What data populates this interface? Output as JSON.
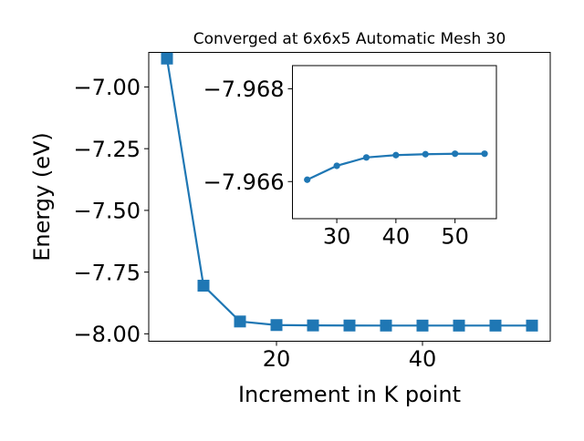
{
  "chart_data": [
    {
      "type": "line",
      "title": "Converged at 6x6x5 Automatic Mesh 30",
      "xlabel": "Increment in K point",
      "ylabel": "Energy (eV)",
      "xlim": [
        2.5,
        57.5
      ],
      "ylim": [
        -8.03,
        -6.86
      ],
      "xticks": [
        20,
        40
      ],
      "yticks": [
        -7.0,
        -7.25,
        -7.5,
        -7.75,
        -8.0
      ],
      "xtick_labels": [
        "20",
        "40"
      ],
      "ytick_labels": [
        "−7.00",
        "−7.25",
        "−7.50",
        "−7.75",
        "−8.00"
      ],
      "marker": "square",
      "color": "#1f77b4",
      "series": [
        {
          "x": [
            5,
            10,
            15,
            20,
            25,
            30,
            35,
            40,
            45,
            50,
            55
          ],
          "y": [
            -6.885,
            -7.805,
            -7.95,
            -7.9645,
            -7.966,
            -7.9663,
            -7.9665,
            -7.9666,
            -7.9666,
            -7.9666,
            -7.9666
          ]
        }
      ]
    },
    {
      "type": "line",
      "inset": true,
      "xlim": [
        22.5,
        57.0
      ],
      "ylim": [
        -7.9652,
        -7.9685
      ],
      "xticks": [
        30,
        40,
        50
      ],
      "yticks": [
        -7.968,
        -7.966
      ],
      "xtick_labels": [
        "30",
        "40",
        "50"
      ],
      "ytick_labels": [
        "−7.968",
        "−7.966"
      ],
      "marker": "circle",
      "color": "#1f77b4",
      "series": [
        {
          "x": [
            25,
            30,
            35,
            40,
            45,
            50,
            55
          ],
          "y": [
            -7.96604,
            -7.96634,
            -7.96652,
            -7.96657,
            -7.96659,
            -7.9666,
            -7.9666
          ]
        }
      ]
    }
  ]
}
